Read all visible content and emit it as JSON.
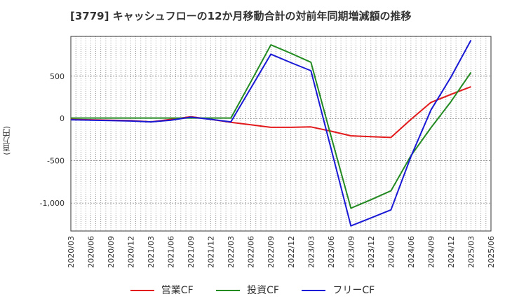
{
  "title": "[3779]  キャッシュフローの12か月移動合計の対前年同期増減額の推移",
  "unit": "(百万円)",
  "chart_data": {
    "type": "line",
    "x": [
      "2020/03",
      "2020/06",
      "2020/09",
      "2020/12",
      "2021/03",
      "2021/06",
      "2021/09",
      "2021/12",
      "2022/03",
      "2022/06",
      "2022/09",
      "2022/12",
      "2023/03",
      "2023/06",
      "2023/09",
      "2023/12",
      "2024/03",
      "2024/06",
      "2024/09",
      "2024/12",
      "2025/03",
      "2025/06"
    ],
    "ylim": [
      -1330,
      970
    ],
    "yticks": [
      500,
      0,
      -500,
      -1000
    ],
    "ytick_labels": [
      "500",
      "0",
      "-500",
      "-1,000"
    ],
    "series": [
      {
        "name": "営業CF",
        "color": "#e31a1c",
        "values": [
          -10,
          -15,
          -20,
          -25,
          -40,
          -10,
          20,
          -10,
          -45,
          -75,
          -105,
          -105,
          -100,
          -150,
          -205,
          -215,
          -225,
          -10,
          190,
          285,
          375,
          null
        ]
      },
      {
        "name": "投資CF",
        "color": "#238b22",
        "values": [
          5,
          5,
          5,
          5,
          5,
          5,
          5,
          5,
          5,
          435,
          870,
          770,
          665,
          -205,
          -1060,
          -960,
          -855,
          -440,
          -110,
          200,
          545,
          null
        ]
      },
      {
        "name": "フリーCF",
        "color": "#1a1ad6",
        "values": [
          -15,
          -20,
          -25,
          -30,
          -40,
          -20,
          15,
          -10,
          -40,
          360,
          760,
          660,
          565,
          -350,
          -1270,
          -1175,
          -1080,
          -450,
          100,
          490,
          925,
          null
        ]
      }
    ]
  }
}
